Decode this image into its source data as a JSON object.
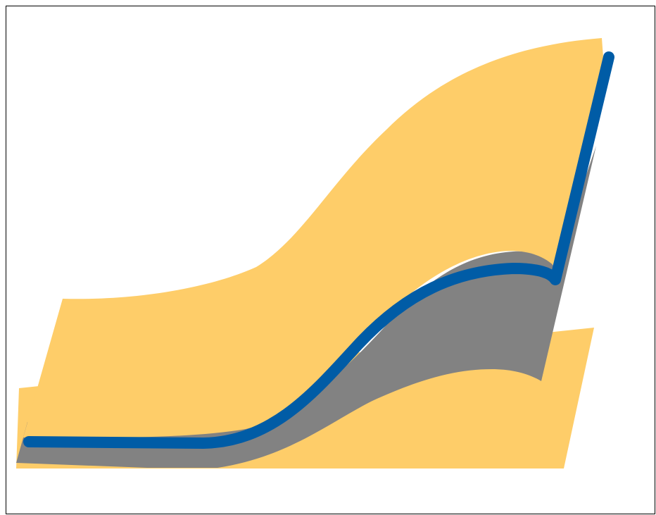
{
  "diagram": {
    "kind": "layered-surface-illustration",
    "labels": [],
    "layers": [
      {
        "name": "lower-gold-layer",
        "color": "#fecd69"
      },
      {
        "name": "upper-gold-layer",
        "color": "#fecd69"
      },
      {
        "name": "grey-shadow-layer",
        "color": "#828282"
      },
      {
        "name": "blue-curve-band",
        "color": "#005ca6"
      }
    ],
    "colors": {
      "frame": "#000000",
      "background": "#ffffff",
      "gold": "#fecd69",
      "grey": "#828282",
      "blue": "#005ca6"
    }
  }
}
